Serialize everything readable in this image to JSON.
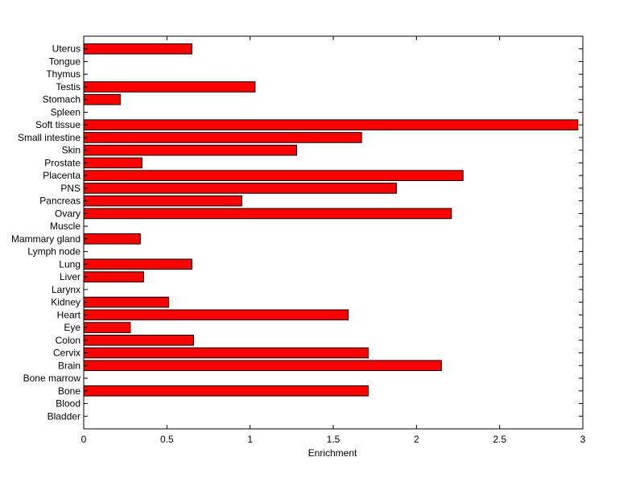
{
  "chart_data": {
    "type": "bar",
    "orientation": "horizontal",
    "title": "",
    "xlabel": "Enrichment",
    "ylabel": "",
    "xlim": [
      0,
      3
    ],
    "x_ticks": [
      "0",
      "0.5",
      "1",
      "1.5",
      "2",
      "2.5",
      "3"
    ],
    "grid": false,
    "bar_color": "#ff0000",
    "categories": [
      "Bladder",
      "Blood",
      "Bone",
      "Bone marrow",
      "Brain",
      "Cervix",
      "Colon",
      "Eye",
      "Heart",
      "Kidney",
      "Larynx",
      "Liver",
      "Lung",
      "Lymph node",
      "Mammary gland",
      "Muscle",
      "Ovary",
      "Pancreas",
      "PNS",
      "Placenta",
      "Prostate",
      "Skin",
      "Small intestine",
      "Soft tissue",
      "Spleen",
      "Stomach",
      "Testis",
      "Thymus",
      "Tongue",
      "Uterus"
    ],
    "values": [
      0,
      0,
      1.71,
      0,
      2.15,
      1.71,
      0.66,
      0.28,
      1.59,
      0.51,
      0,
      0.36,
      0.65,
      0,
      0.34,
      0,
      2.21,
      0.95,
      1.88,
      2.28,
      0.35,
      1.28,
      1.67,
      2.97,
      0,
      0.22,
      1.03,
      0,
      0,
      0.65
    ]
  }
}
